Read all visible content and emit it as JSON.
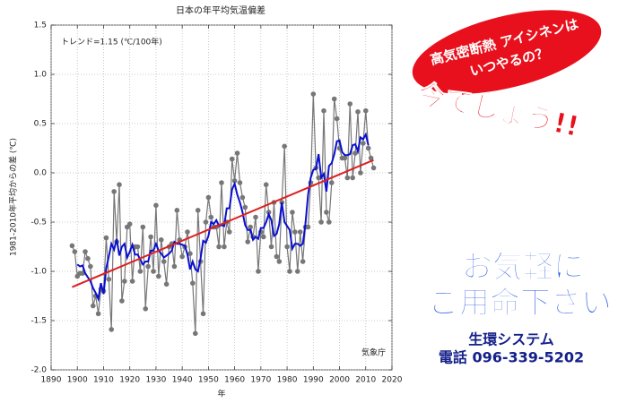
{
  "chart_data": {
    "type": "line",
    "title": "日本の年平均気温偏差",
    "ylabel": "1981-2010年平均からの差 (℃)",
    "xlabel": "年",
    "annotations": [
      "トレンド=1.15 (℃/100年)",
      "気象庁"
    ],
    "x": [
      1898,
      1899,
      1900,
      1901,
      1902,
      1903,
      1904,
      1905,
      1906,
      1907,
      1908,
      1909,
      1910,
      1911,
      1912,
      1913,
      1914,
      1915,
      1916,
      1917,
      1918,
      1919,
      1920,
      1921,
      1922,
      1923,
      1924,
      1925,
      1926,
      1927,
      1928,
      1929,
      1930,
      1931,
      1932,
      1933,
      1934,
      1935,
      1936,
      1937,
      1938,
      1939,
      1940,
      1941,
      1942,
      1943,
      1944,
      1945,
      1946,
      1947,
      1948,
      1949,
      1950,
      1951,
      1952,
      1953,
      1954,
      1955,
      1956,
      1957,
      1958,
      1959,
      1960,
      1961,
      1962,
      1963,
      1964,
      1965,
      1966,
      1967,
      1968,
      1969,
      1970,
      1971,
      1972,
      1973,
      1974,
      1975,
      1976,
      1977,
      1978,
      1979,
      1980,
      1981,
      1982,
      1983,
      1984,
      1985,
      1986,
      1987,
      1988,
      1989,
      1990,
      1991,
      1992,
      1993,
      1994,
      1995,
      1996,
      1997,
      1998,
      1999,
      2000,
      2001,
      2002,
      2003,
      2004,
      2005,
      2006,
      2007,
      2008,
      2009,
      2010,
      2011,
      2012,
      2013
    ],
    "series": [
      {
        "color": "#777777",
        "values": [
          -0.74,
          -0.8,
          -1.05,
          -1.02,
          -1.02,
          -0.8,
          -0.87,
          -0.95,
          -1.35,
          -1.25,
          -1.43,
          -1.18,
          -1.2,
          -0.66,
          -1.08,
          -1.59,
          -0.19,
          -0.7,
          -0.12,
          -1.3,
          -1.1,
          -0.55,
          -0.52,
          -1.1,
          -0.75,
          -0.75,
          -1.0,
          -0.55,
          -1.38,
          -0.95,
          -0.65,
          -1.0,
          -0.33,
          -1.05,
          -0.68,
          -0.9,
          -1.13,
          -0.75,
          -0.72,
          -0.95,
          -0.38,
          -0.68,
          -0.85,
          -0.75,
          -0.6,
          -0.82,
          -1.12,
          -1.63,
          -0.38,
          -0.9,
          -1.43,
          -0.5,
          -0.25,
          -0.45,
          -0.55,
          -0.55,
          -0.75,
          -0.1,
          -0.75,
          -0.5,
          -0.6,
          0.14,
          -0.08,
          0.2,
          -0.1,
          -0.25,
          -0.35,
          -0.7,
          -0.55,
          -0.65,
          -0.45,
          -1.0,
          -0.6,
          -0.65,
          -0.12,
          -0.4,
          -0.75,
          -0.3,
          -0.85,
          -0.9,
          -0.3,
          0.27,
          -0.75,
          -1.0,
          -0.4,
          -0.6,
          -1.0,
          -0.6,
          -0.9,
          -0.55,
          -0.55,
          -0.1,
          0.8,
          0.05,
          -0.05,
          -0.5,
          0.63,
          -0.4,
          -0.5,
          -0.1,
          0.75,
          0.55,
          0.25,
          0.15,
          0.15,
          -0.05,
          0.7,
          -0.05,
          0.2,
          0.62,
          0.0,
          0.3,
          0.63,
          0.25,
          0.15,
          0.05
        ]
      },
      {
        "color": "#0a10d0",
        "values": [
          null,
          null,
          -0.93,
          -0.95,
          -0.94,
          -1.02,
          -1.06,
          -1.1,
          -1.17,
          -1.22,
          -1.28,
          -1.12,
          -1.23,
          -0.97,
          -0.85,
          -0.72,
          -0.78,
          -0.67,
          -0.84,
          -0.75,
          -0.72,
          -0.86,
          -0.8,
          -0.73,
          -0.83,
          -0.83,
          -0.88,
          -0.93,
          -0.9,
          -0.9,
          -0.79,
          -0.79,
          -0.72,
          -0.79,
          -0.82,
          -0.86,
          -0.84,
          -0.82,
          -0.79,
          -0.7,
          -0.72,
          -0.72,
          -0.73,
          -0.74,
          -0.83,
          -0.98,
          -0.9,
          -0.98,
          -1.0,
          -0.87,
          -0.69,
          -0.71,
          -0.64,
          -0.5,
          -0.52,
          -0.48,
          -0.54,
          -0.53,
          -0.54,
          -0.36,
          -0.36,
          -0.17,
          -0.11,
          -0.22,
          -0.3,
          -0.4,
          -0.53,
          -0.58,
          -0.58,
          -0.68,
          -0.65,
          -0.67,
          -0.56,
          -0.56,
          -0.5,
          -0.42,
          -0.48,
          -0.64,
          -0.62,
          -0.52,
          -0.3,
          -0.5,
          -0.54,
          -0.58,
          -0.77,
          -0.72,
          -0.72,
          -0.74,
          -0.72,
          -0.52,
          -0.22,
          -0.05,
          0.03,
          0.04,
          0.19,
          -0.05,
          -0.01,
          -0.19,
          0.07,
          0.1,
          0.19,
          0.32,
          0.33,
          0.21,
          0.18,
          0.18,
          0.19,
          0.28,
          0.29,
          0.22,
          0.36,
          0.34,
          0.39,
          0.28,
          null,
          null
        ]
      },
      {
        "color": "#dd2020",
        "x": [
          1898,
          2013
        ],
        "values": [
          -1.16,
          0.13
        ]
      }
    ],
    "xlim": [
      1890,
      2020
    ],
    "xticks": [
      1890,
      1900,
      1910,
      1920,
      1930,
      1940,
      1950,
      1960,
      1970,
      1980,
      1990,
      2000,
      2010,
      2020
    ],
    "ylim": [
      -2.0,
      1.5
    ],
    "yticks": [
      {
        "value": -2.0,
        "label": "-2.0"
      },
      -1.5,
      {
        "value": -1.0,
        "label": "-1.0"
      },
      -0.5,
      {
        "value": 0.0,
        "label": "0.0"
      },
      0.5,
      {
        "value": 1.0,
        "label": "1.0"
      },
      1.5
    ],
    "grid": true
  },
  "ad": {
    "bubble_lines": [
      "高気密断熱 アイシネンは",
      "いつやるの？"
    ],
    "slogan": "今でしょう!!",
    "call_lines": [
      "お気軽に",
      "ご用命下さい"
    ],
    "company": "生環システム",
    "phone": "電話 096-339-5202"
  }
}
